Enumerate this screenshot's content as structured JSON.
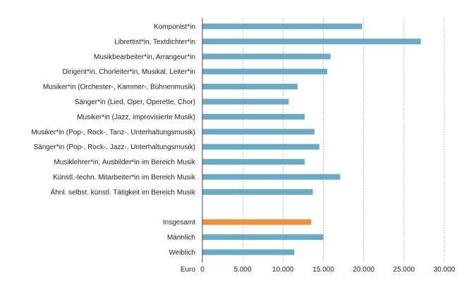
{
  "chart_data": {
    "type": "bar",
    "orientation": "horizontal",
    "categories": [
      "Komponist*in",
      "Librettist*in, Textdichter*in",
      "Musikbearbeiter*in, Arrangeur*in",
      "Dirigent*in, Chorleiter*in, Musikal. Leiter*in",
      "Musiker*in (Orchester-, Kammer-, Bühnenmusik)",
      "Sänger*in (Lied, Oper, Operette, Chor)",
      "Musiker*in (Jazz, improvisierte Musik)",
      "Musiker*in (Pop-, Rock-, Tanz-, Unterhaltungsmusik)",
      "Sänger*in (Pop-, Rock-, Jazz-, Unterhaltungsmusik)",
      "Musiklehrer*in, Ausbilder*in im Bereich Musik",
      "Künstl.-techn. Mitarbeiter*in im Bereich Musik",
      "Ähnl. selbst. künstl. Tätigkeit im Bereich Musik",
      "",
      "Insgesamt",
      "Männlich",
      "Weiblich"
    ],
    "values": [
      19800,
      27100,
      15900,
      15500,
      11800,
      10700,
      12700,
      13900,
      14500,
      12700,
      17100,
      13700,
      null,
      13500,
      15000,
      11400
    ],
    "highlight_category": "Insgesamt",
    "colors": {
      "default": "#6aaac4",
      "highlight": "#ee8f3f"
    },
    "xlim": [
      0,
      30000
    ],
    "xticks": [
      "0",
      "5.000",
      "10.000",
      "15.000",
      "20.000",
      "25.000",
      "30.000"
    ],
    "xunit": "Euro",
    "grid": "vertical dotted",
    "title": "",
    "xlabel": "",
    "ylabel": ""
  }
}
